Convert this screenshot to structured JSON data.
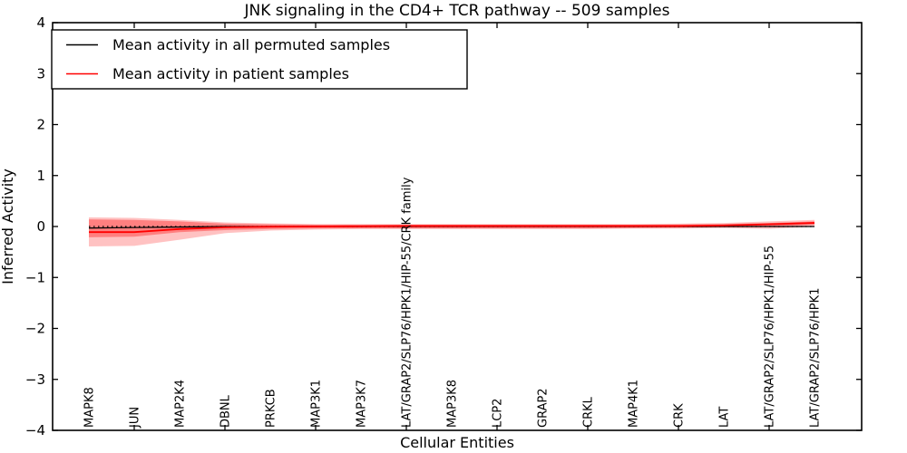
{
  "chart_data": {
    "type": "line",
    "title": "JNK signaling in the CD4+ TCR pathway -- 509 samples",
    "xlabel": "Cellular Entities",
    "ylabel": "Inferred Activity",
    "ylim": [
      -4,
      4
    ],
    "yticks": [
      -4,
      -3,
      -2,
      -1,
      0,
      1,
      2,
      3,
      4
    ],
    "ytick_labels": [
      "−4",
      "−3",
      "−2",
      "−1",
      "0",
      "1",
      "2",
      "3",
      "4"
    ],
    "grid": false,
    "categories": [
      "MAPK8",
      "JUN",
      "MAP2K4",
      "DBNL",
      "PRKCB",
      "MAP3K1",
      "MAP3K7",
      "LAT/GRAP2/SLP76/HPK1/HIP-55/CRK family",
      "MAP3K8",
      "LCP2",
      "GRAP2",
      "CRKL",
      "MAP4K1",
      "CRK",
      "LAT",
      "LAT/GRAP2/SLP76/HPK1/HIP-55",
      "LAT/GRAP2/SLP76/HPK1"
    ],
    "series": [
      {
        "name": "Mean activity in all permuted samples",
        "color": "#000000",
        "style": "solid",
        "values": [
          -0.03,
          -0.02,
          -0.01,
          0,
          0,
          0,
          0,
          0,
          0,
          0,
          0,
          0,
          0,
          0,
          0,
          0,
          0
        ]
      },
      {
        "name": "Mean activity in patient samples",
        "color": "#ff0000",
        "style": "solid",
        "values": [
          -0.11,
          -0.11,
          -0.05,
          -0.015,
          -0.005,
          0,
          0.005,
          0.01,
          0.01,
          0.01,
          0.01,
          0.01,
          0.01,
          0.01,
          0.02,
          0.045,
          0.07
        ]
      },
      {
        "name": "zero-reference",
        "color": "#000000",
        "style": "dotted",
        "values": [
          0,
          0,
          0,
          0,
          0,
          0,
          0,
          0,
          0,
          0,
          0,
          0,
          0,
          0,
          0,
          0,
          0
        ]
      }
    ],
    "bands": [
      {
        "name": "patient-band-outer",
        "color": "rgba(255,0,0,0.24)",
        "upper": [
          0.18,
          0.17,
          0.13,
          0.08,
          0.06,
          0.05,
          0.05,
          0.05,
          0.05,
          0.05,
          0.05,
          0.05,
          0.05,
          0.055,
          0.07,
          0.1,
          0.13
        ],
        "lower": [
          -0.39,
          -0.38,
          -0.26,
          -0.13,
          -0.08,
          -0.06,
          -0.05,
          -0.05,
          -0.05,
          -0.05,
          -0.05,
          -0.05,
          -0.04,
          -0.04,
          -0.03,
          -0.045,
          -0.005
        ]
      },
      {
        "name": "patient-band-inner",
        "color": "rgba(255,0,0,0.34)",
        "upper": [
          0.14,
          0.13,
          0.1,
          0.055,
          0.045,
          0.035,
          0.035,
          0.035,
          0.035,
          0.035,
          0.035,
          0.035,
          0.035,
          0.04,
          0.05,
          0.07,
          0.1
        ],
        "lower": [
          -0.21,
          -0.2,
          -0.11,
          -0.07,
          -0.05,
          -0.04,
          -0.035,
          -0.035,
          -0.035,
          -0.035,
          -0.035,
          -0.035,
          -0.03,
          -0.025,
          -0.01,
          0.0,
          0.035
        ]
      }
    ],
    "legend": {
      "position": "upper-left",
      "entries": [
        {
          "label": "Mean activity in all permuted samples",
          "color": "#000000"
        },
        {
          "label": "Mean activity in patient samples",
          "color": "#ff0000"
        }
      ]
    },
    "colors": {
      "axes": "#000000",
      "background": "#ffffff",
      "patient_line": "#ff0000",
      "permuted_line": "#000000"
    }
  }
}
